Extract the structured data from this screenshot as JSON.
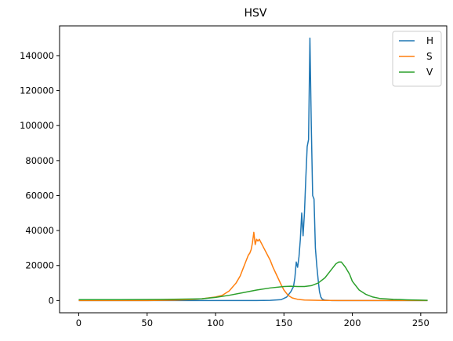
{
  "chart_data": {
    "type": "line",
    "title": "HSV",
    "xlabel": "",
    "ylabel": "",
    "xlim": [
      -14,
      269
    ],
    "ylim": [
      -7000,
      157000
    ],
    "xticks": [
      0,
      50,
      100,
      150,
      200,
      250
    ],
    "yticks": [
      0,
      20000,
      40000,
      60000,
      80000,
      100000,
      120000,
      140000
    ],
    "grid": false,
    "legend": "top-right",
    "series": [
      {
        "name": "H",
        "color": "#1f77b4",
        "points": [
          [
            0,
            0
          ],
          [
            100,
            0
          ],
          [
            130,
            0
          ],
          [
            140,
            100
          ],
          [
            148,
            500
          ],
          [
            152,
            2000
          ],
          [
            155,
            5000
          ],
          [
            157,
            8000
          ],
          [
            158,
            13000
          ],
          [
            159,
            22000
          ],
          [
            160,
            19000
          ],
          [
            161,
            25000
          ],
          [
            162,
            35000
          ],
          [
            163,
            50000
          ],
          [
            164,
            37000
          ],
          [
            165,
            50000
          ],
          [
            166,
            70000
          ],
          [
            167,
            88000
          ],
          [
            168,
            92000
          ],
          [
            169,
            150000
          ],
          [
            170,
            100000
          ],
          [
            171,
            60000
          ],
          [
            172,
            58000
          ],
          [
            173,
            30000
          ],
          [
            174,
            20000
          ],
          [
            175,
            12000
          ],
          [
            176,
            5000
          ],
          [
            177,
            2000
          ],
          [
            178,
            800
          ],
          [
            180,
            200
          ],
          [
            185,
            0
          ],
          [
            255,
            0
          ]
        ]
      },
      {
        "name": "S",
        "color": "#ff7f0e",
        "points": [
          [
            0,
            0
          ],
          [
            50,
            0
          ],
          [
            70,
            200
          ],
          [
            80,
            500
          ],
          [
            90,
            1000
          ],
          [
            100,
            2000
          ],
          [
            105,
            3000
          ],
          [
            110,
            5500
          ],
          [
            115,
            10000
          ],
          [
            118,
            14000
          ],
          [
            120,
            18000
          ],
          [
            122,
            22000
          ],
          [
            124,
            26000
          ],
          [
            125,
            27000
          ],
          [
            126,
            29000
          ],
          [
            127,
            33000
          ],
          [
            128,
            39000
          ],
          [
            129,
            32000
          ],
          [
            130,
            35000
          ],
          [
            131,
            34000
          ],
          [
            132,
            35000
          ],
          [
            134,
            32000
          ],
          [
            136,
            29000
          ],
          [
            138,
            26000
          ],
          [
            140,
            23000
          ],
          [
            142,
            19000
          ],
          [
            145,
            14000
          ],
          [
            148,
            9000
          ],
          [
            150,
            6000
          ],
          [
            153,
            3000
          ],
          [
            156,
            1500
          ],
          [
            160,
            700
          ],
          [
            165,
            300
          ],
          [
            175,
            100
          ],
          [
            190,
            0
          ],
          [
            255,
            0
          ]
        ]
      },
      {
        "name": "V",
        "color": "#2ca02c",
        "points": [
          [
            0,
            500
          ],
          [
            30,
            500
          ],
          [
            60,
            600
          ],
          [
            90,
            1000
          ],
          [
            100,
            1800
          ],
          [
            110,
            3000
          ],
          [
            120,
            4500
          ],
          [
            130,
            6000
          ],
          [
            140,
            7200
          ],
          [
            150,
            8000
          ],
          [
            155,
            8200
          ],
          [
            160,
            8000
          ],
          [
            165,
            8000
          ],
          [
            170,
            8500
          ],
          [
            175,
            10000
          ],
          [
            180,
            13000
          ],
          [
            185,
            18000
          ],
          [
            188,
            21000
          ],
          [
            190,
            22000
          ],
          [
            192,
            22000
          ],
          [
            195,
            19000
          ],
          [
            198,
            15000
          ],
          [
            200,
            11000
          ],
          [
            205,
            6000
          ],
          [
            210,
            3500
          ],
          [
            215,
            2000
          ],
          [
            220,
            1200
          ],
          [
            230,
            700
          ],
          [
            240,
            400
          ],
          [
            250,
            200
          ],
          [
            255,
            100
          ]
        ]
      }
    ]
  }
}
